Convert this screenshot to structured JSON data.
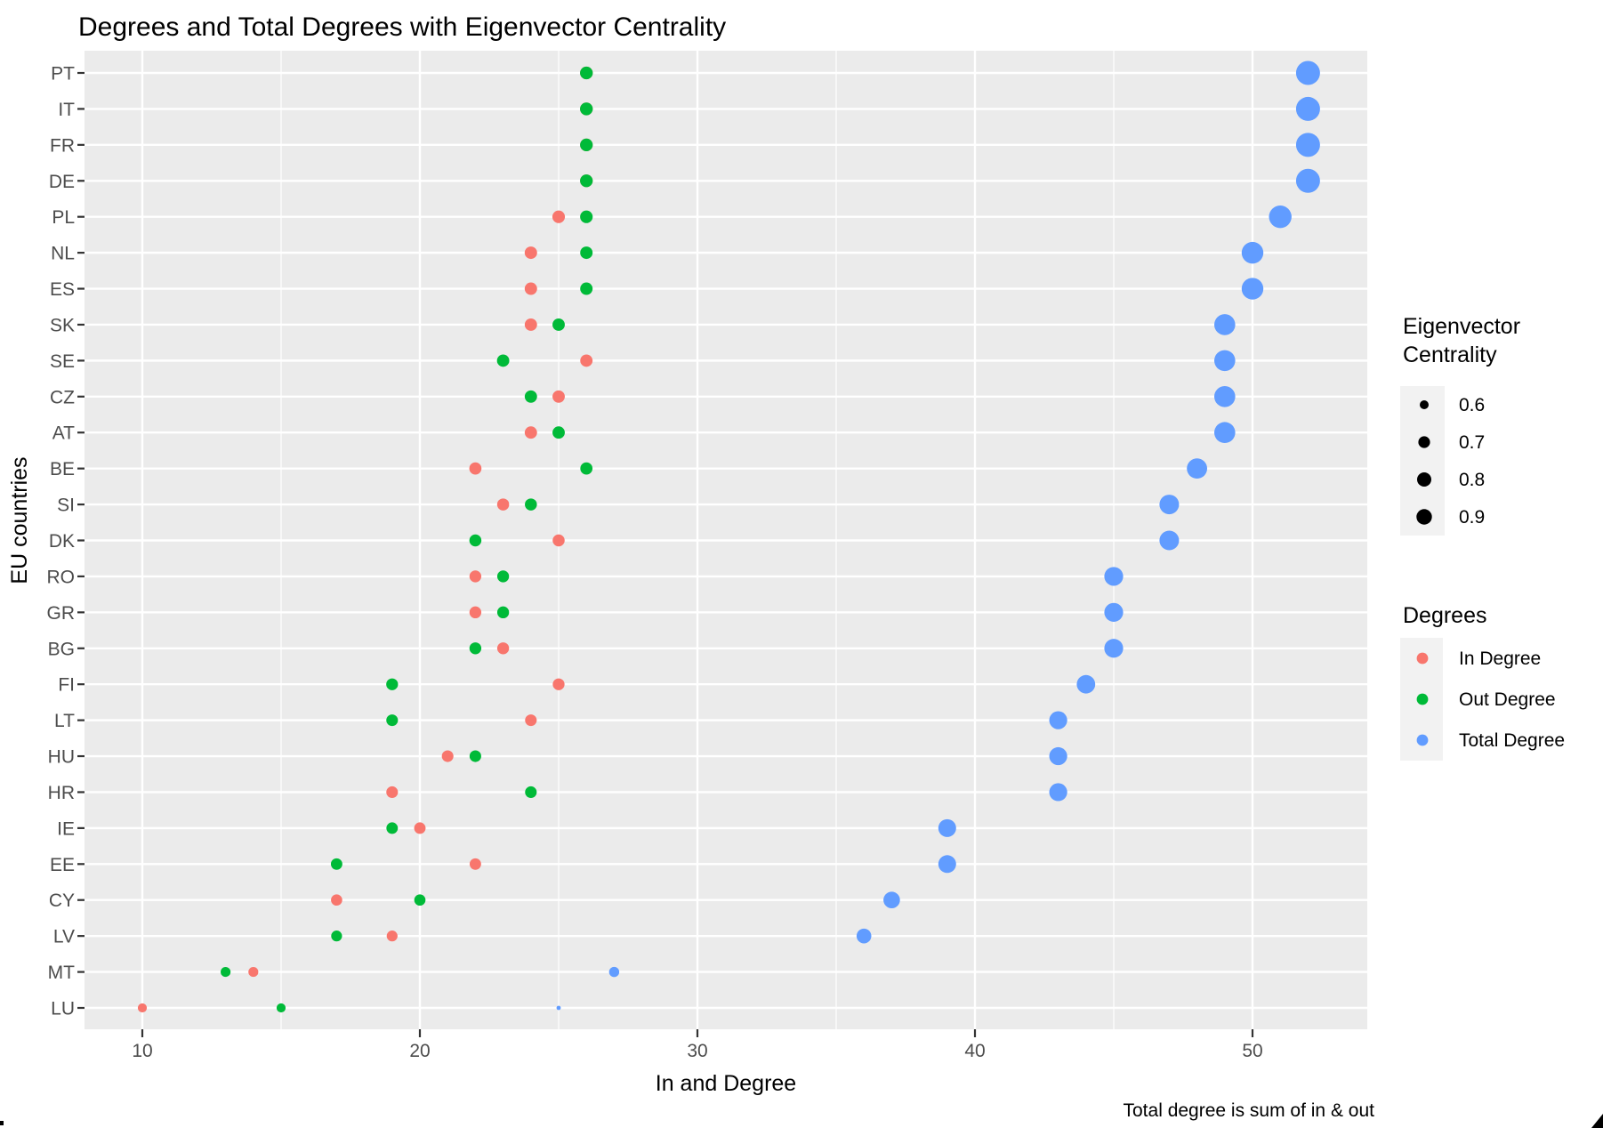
{
  "title": "Degrees and Total Degrees with Eigenvector Centrality",
  "caption": "Total degree is sum of in & out",
  "x_axis": {
    "label": "In and Degree",
    "ticks": [
      10,
      20,
      30,
      40,
      50
    ],
    "minor_ticks": [
      15,
      25,
      35,
      45
    ]
  },
  "y_axis": {
    "label": "EU countries"
  },
  "legend": {
    "size": {
      "title_lines": [
        "Eigenvector",
        "Centrality"
      ],
      "entries": [
        {
          "label": "0.6",
          "r": 5.0
        },
        {
          "label": "0.7",
          "r": 6.6
        },
        {
          "label": "0.8",
          "r": 8.0
        },
        {
          "label": "0.9",
          "r": 8.7
        }
      ]
    },
    "color": {
      "title": "Degrees",
      "entries": [
        {
          "label": "In Degree",
          "color_key": "in_degree"
        },
        {
          "label": "Out Degree",
          "color_key": "out_degree"
        },
        {
          "label": "Total Degree",
          "color_key": "total_degree"
        }
      ]
    }
  },
  "colors": {
    "in_degree": "#F8766D",
    "out_degree": "#00BA38",
    "total_degree": "#619CFF",
    "panel_bg": "#EBEBEB",
    "grid": "#FFFFFF",
    "axis_text": "#4D4D4D",
    "tick_mark": "#333333",
    "key_bg": "#F2F2F2",
    "legend_dot": "#000000",
    "corner_mark": "#000000"
  },
  "chart_data": {
    "type": "scatter",
    "orientation": "horizontal-dotplot",
    "x_range_shown": [
      10,
      50
    ],
    "series_legend": [
      "In Degree",
      "Out Degree",
      "Total Degree"
    ],
    "note": "size of Total Degree dot encodes Eigenvector Centrality (values below are size estimates read from the figure)",
    "rows": [
      {
        "code": "PT",
        "in": 26,
        "out": 26,
        "total": 52,
        "eigen": 0.99,
        "r": 13.5
      },
      {
        "code": "IT",
        "in": 26,
        "out": 26,
        "total": 52,
        "eigen": 0.99,
        "r": 13.5
      },
      {
        "code": "FR",
        "in": 26,
        "out": 26,
        "total": 52,
        "eigen": 0.98,
        "r": 13.5
      },
      {
        "code": "DE",
        "in": 26,
        "out": 26,
        "total": 52,
        "eigen": 0.98,
        "r": 13.5
      },
      {
        "code": "PL",
        "in": 25,
        "out": 26,
        "total": 51,
        "eigen": 0.97,
        "r": 12.7
      },
      {
        "code": "NL",
        "in": 24,
        "out": 26,
        "total": 50,
        "eigen": 0.95,
        "r": 12.2
      },
      {
        "code": "ES",
        "in": 24,
        "out": 26,
        "total": 50,
        "eigen": 0.95,
        "r": 12.2
      },
      {
        "code": "SK",
        "in": 24,
        "out": 25,
        "total": 49,
        "eigen": 0.94,
        "r": 11.8
      },
      {
        "code": "SE",
        "in": 26,
        "out": 23,
        "total": 49,
        "eigen": 0.94,
        "r": 11.8
      },
      {
        "code": "CZ",
        "in": 25,
        "out": 24,
        "total": 49,
        "eigen": 0.94,
        "r": 11.8
      },
      {
        "code": "AT",
        "in": 24,
        "out": 25,
        "total": 49,
        "eigen": 0.94,
        "r": 11.8
      },
      {
        "code": "BE",
        "in": 22,
        "out": 26,
        "total": 48,
        "eigen": 0.92,
        "r": 11.4
      },
      {
        "code": "SI",
        "in": 23,
        "out": 24,
        "total": 47,
        "eigen": 0.9,
        "r": 11.0
      },
      {
        "code": "DK",
        "in": 25,
        "out": 22,
        "total": 47,
        "eigen": 0.9,
        "r": 11.0
      },
      {
        "code": "RO",
        "in": 22,
        "out": 23,
        "total": 45,
        "eigen": 0.88,
        "r": 10.6
      },
      {
        "code": "GR",
        "in": 22,
        "out": 23,
        "total": 45,
        "eigen": 0.88,
        "r": 10.6
      },
      {
        "code": "BG",
        "in": 23,
        "out": 22,
        "total": 45,
        "eigen": 0.88,
        "r": 10.6
      },
      {
        "code": "FI",
        "in": 25,
        "out": 19,
        "total": 44,
        "eigen": 0.87,
        "r": 10.4
      },
      {
        "code": "LT",
        "in": 24,
        "out": 19,
        "total": 43,
        "eigen": 0.85,
        "r": 10.1
      },
      {
        "code": "HU",
        "in": 21,
        "out": 22,
        "total": 43,
        "eigen": 0.85,
        "r": 10.1
      },
      {
        "code": "HR",
        "in": 19,
        "out": 24,
        "total": 43,
        "eigen": 0.85,
        "r": 10.1
      },
      {
        "code": "IE",
        "in": 20,
        "out": 19,
        "total": 39,
        "eigen": 0.83,
        "r": 10.0
      },
      {
        "code": "EE",
        "in": 22,
        "out": 17,
        "total": 39,
        "eigen": 0.83,
        "r": 10.0
      },
      {
        "code": "CY",
        "in": 17,
        "out": 20,
        "total": 37,
        "eigen": 0.8,
        "r": 9.3
      },
      {
        "code": "LV",
        "in": 19,
        "out": 17,
        "total": 36,
        "eigen": 0.75,
        "r": 8.3
      },
      {
        "code": "MT",
        "in": 14,
        "out": 13,
        "total": 27,
        "eigen": 0.63,
        "r": 5.7
      },
      {
        "code": "LU",
        "in": 10,
        "out": 15,
        "total": 25,
        "eigen": 0.52,
        "r": 2.4
      }
    ]
  }
}
